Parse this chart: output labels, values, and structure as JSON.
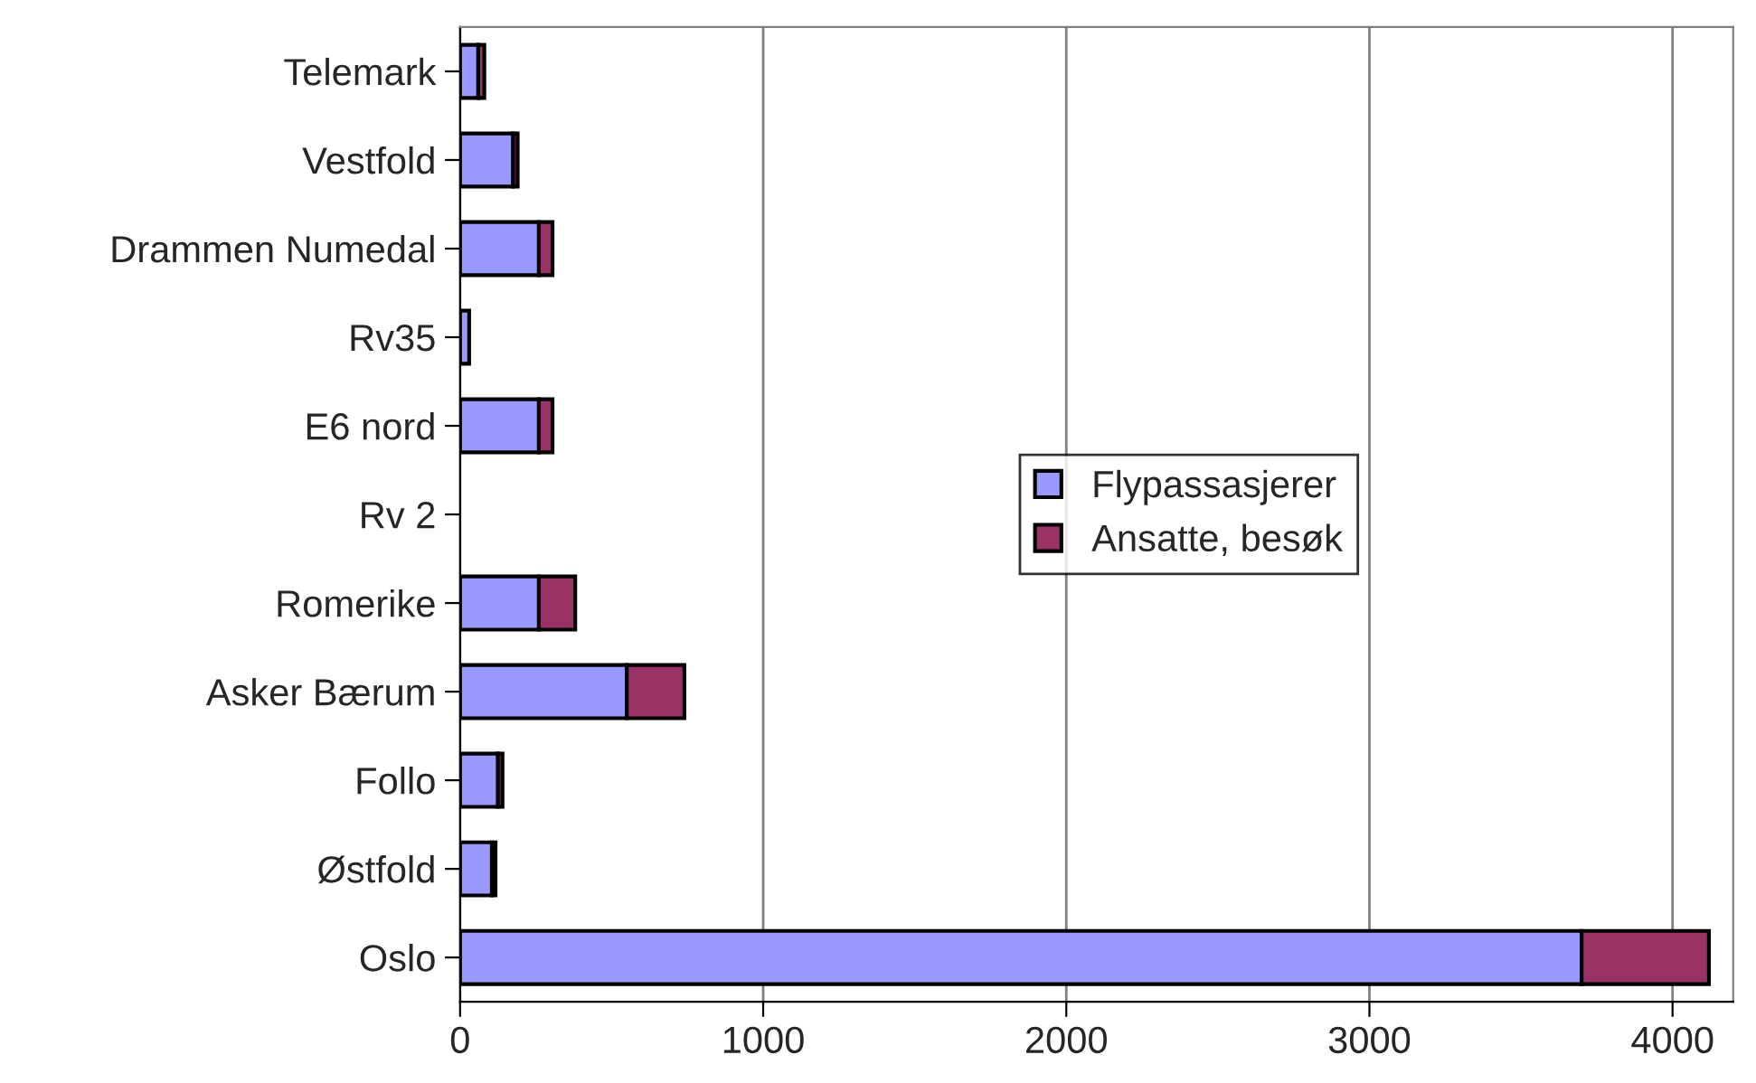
{
  "chart_data": {
    "type": "bar",
    "orientation": "horizontal",
    "stacked": true,
    "categories": [
      "Telemark",
      "Vestfold",
      "Drammen Numedal",
      "Rv35",
      "E6 nord",
      "Rv 2",
      "Romerike",
      "Asker Bærum",
      "Follo",
      "Østfold",
      "Oslo"
    ],
    "series": [
      {
        "name": "Flypassasjerer",
        "color": "#9999ff",
        "values": [
          60,
          175,
          260,
          30,
          260,
          null,
          260,
          550,
          125,
          105,
          3700
        ]
      },
      {
        "name": "Ansatte, besøk",
        "color": "#993366",
        "values": [
          20,
          15,
          45,
          null,
          45,
          null,
          120,
          190,
          15,
          12,
          420
        ]
      }
    ],
    "xlim": [
      0,
      4200
    ],
    "xticks": [
      0,
      1000,
      2000,
      3000,
      4000
    ],
    "grid": "x",
    "legend": "right"
  }
}
